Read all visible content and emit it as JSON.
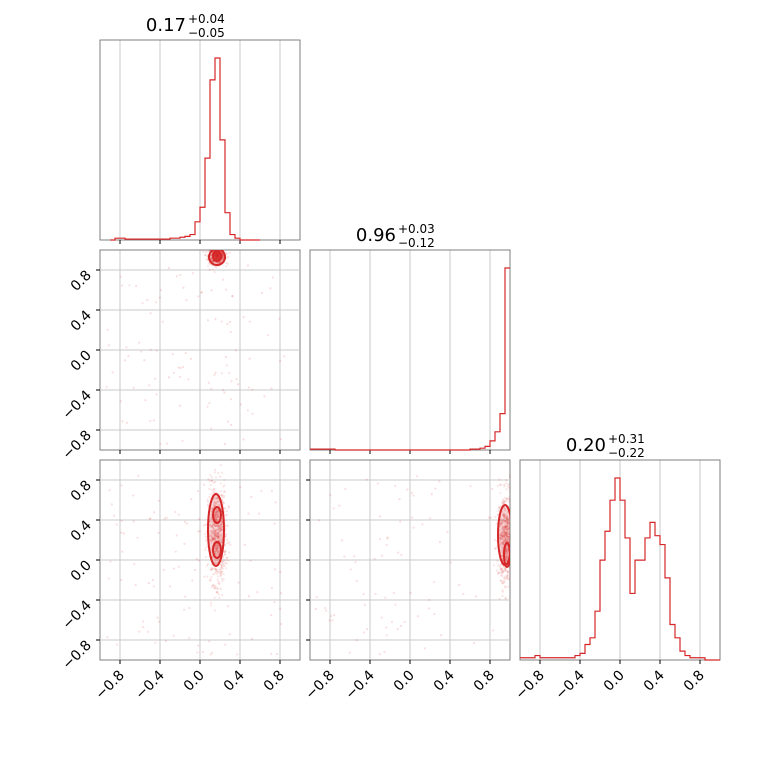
{
  "chart_data": {
    "type": "corner",
    "color": "#d62728",
    "grid": true,
    "axis_range": [
      -1.0,
      1.0
    ],
    "ticks": [
      -0.8,
      -0.4,
      0.0,
      0.4,
      0.8
    ],
    "tick_labels": [
      "−0.8",
      "−0.4",
      "0.0",
      "0.4",
      "0.8"
    ],
    "titles": [
      {
        "value": "0.17",
        "plus": "+0.04",
        "minus": "−0.05"
      },
      {
        "value": "0.96",
        "plus": "+0.03",
        "minus": "−0.12"
      },
      {
        "value": "0.20",
        "plus": "+0.31",
        "minus": "−0.22"
      }
    ],
    "histograms": [
      {
        "param": 0,
        "x": [
          -0.9,
          -0.85,
          -0.8,
          -0.75,
          -0.7,
          -0.65,
          -0.6,
          -0.55,
          -0.5,
          -0.45,
          -0.4,
          -0.35,
          -0.3,
          -0.25,
          -0.2,
          -0.15,
          -0.1,
          -0.05,
          0.0,
          0.05,
          0.1,
          0.15,
          0.2,
          0.25,
          0.3,
          0.35,
          0.4,
          0.45,
          0.5,
          0.55
        ],
        "y": [
          0,
          0.01,
          0.01,
          0.005,
          0.005,
          0.005,
          0.005,
          0.005,
          0.005,
          0.005,
          0.005,
          0.005,
          0.01,
          0.01,
          0.015,
          0.02,
          0.03,
          0.1,
          0.18,
          0.45,
          0.88,
          1.0,
          0.55,
          0.15,
          0.03,
          0.01,
          0,
          0,
          0,
          0
        ]
      },
      {
        "param": 1,
        "x": [
          -1.0,
          -0.95,
          -0.9,
          -0.85,
          -0.8,
          -0.75,
          -0.7,
          -0.65,
          -0.6,
          -0.55,
          -0.5,
          -0.45,
          -0.4,
          -0.35,
          -0.3,
          -0.25,
          -0.2,
          -0.15,
          -0.1,
          -0.05,
          0.0,
          0.05,
          0.1,
          0.15,
          0.2,
          0.25,
          0.3,
          0.35,
          0.4,
          0.45,
          0.5,
          0.55,
          0.6,
          0.65,
          0.7,
          0.75,
          0.8,
          0.85,
          0.9,
          0.95
        ],
        "y": [
          0.005,
          0.005,
          0.005,
          0.005,
          0.005,
          0,
          0,
          0,
          0,
          0,
          0,
          0,
          0,
          0,
          0,
          0,
          0,
          0,
          0,
          0,
          0,
          0,
          0,
          0,
          0,
          0,
          0,
          0,
          0,
          0,
          0,
          0,
          0.005,
          0.005,
          0.01,
          0.02,
          0.05,
          0.1,
          0.2,
          1.0
        ]
      },
      {
        "param": 2,
        "x": [
          -1.0,
          -0.95,
          -0.9,
          -0.85,
          -0.8,
          -0.75,
          -0.7,
          -0.65,
          -0.6,
          -0.55,
          -0.5,
          -0.45,
          -0.4,
          -0.35,
          -0.3,
          -0.25,
          -0.2,
          -0.15,
          -0.1,
          -0.05,
          0.0,
          0.05,
          0.1,
          0.15,
          0.2,
          0.25,
          0.3,
          0.35,
          0.4,
          0.45,
          0.5,
          0.55,
          0.6,
          0.65,
          0.7,
          0.75,
          0.8,
          0.85,
          0.9,
          0.95
        ],
        "y": [
          0.01,
          0.01,
          0.01,
          0.02,
          0.01,
          0.01,
          0.01,
          0.01,
          0.01,
          0.01,
          0.01,
          0.02,
          0.03,
          0.07,
          0.1,
          0.22,
          0.45,
          0.58,
          0.72,
          0.82,
          0.72,
          0.55,
          0.3,
          0.45,
          0.45,
          0.55,
          0.62,
          0.56,
          0.52,
          0.37,
          0.16,
          0.1,
          0.04,
          0.02,
          0.01,
          0.01,
          0.01,
          0,
          0,
          0
        ]
      }
    ],
    "scatter_panels": [
      {
        "x_param": 0,
        "y_param": 1,
        "core": {
          "center": [
            0.17,
            0.94
          ],
          "sd": [
            0.04,
            0.04
          ]
        },
        "contours": [
          {
            "center": [
              0.17,
              0.94
            ],
            "r": [
              0.04,
              0.05
            ]
          },
          {
            "center": [
              0.17,
              0.93
            ],
            "r": [
              0.08,
              0.08
            ]
          }
        ]
      },
      {
        "x_param": 0,
        "y_param": 2,
        "core": {
          "center": [
            0.17,
            0.25
          ],
          "sd": [
            0.045,
            0.24
          ]
        },
        "contours": [
          {
            "center": [
              0.17,
              0.1
            ],
            "r": [
              0.04,
              0.08
            ]
          },
          {
            "center": [
              0.17,
              0.45
            ],
            "r": [
              0.04,
              0.08
            ]
          },
          {
            "center": [
              0.16,
              0.3
            ],
            "r": [
              0.08,
              0.36
            ]
          }
        ]
      },
      {
        "x_param": 1,
        "y_param": 2,
        "core": {
          "center": [
            0.96,
            0.2
          ],
          "sd": [
            0.04,
            0.22
          ]
        },
        "contours": [
          {
            "center": [
              0.97,
              0.05
            ],
            "r": [
              0.03,
              0.12
            ]
          },
          {
            "center": [
              0.95,
              0.25
            ],
            "r": [
              0.07,
              0.3
            ]
          }
        ]
      }
    ]
  }
}
